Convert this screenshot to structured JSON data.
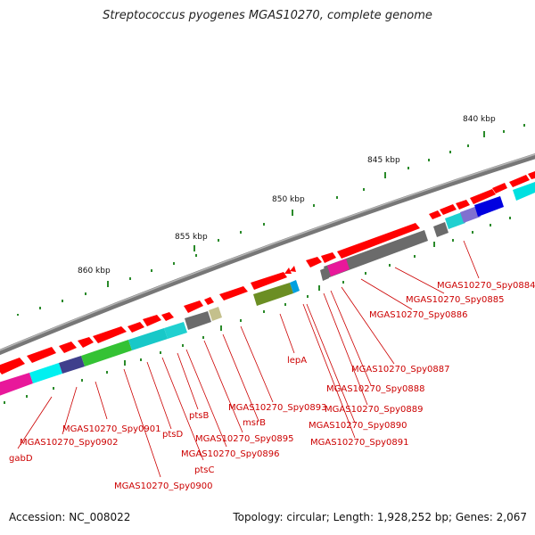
{
  "title": "Streptococcus pyogenes MGAS10270, complete genome",
  "footer": {
    "accession": "Accession: NC_008022",
    "summary": "Topology: circular; Length: 1,928,252 bp; Genes: 2,067"
  },
  "colors": {
    "forward_gene": "#ff0000",
    "reverse_gene": "#6b6b6b",
    "backbone": "#888888",
    "tick": "#2a8a2a",
    "label": "#cc0000"
  },
  "axis": {
    "ticks": [
      {
        "kbp": 860,
        "label": "860 kbp"
      },
      {
        "kbp": 855,
        "label": "855 kbp"
      },
      {
        "kbp": 850,
        "label": "850 kbp"
      },
      {
        "kbp": 845,
        "label": "845 kbp"
      },
      {
        "kbp": 840,
        "label": "840 kbp"
      }
    ]
  },
  "labels": [
    {
      "id": "l-gabD",
      "text": "gabD"
    },
    {
      "id": "l-0902",
      "text": "MGAS10270_Spy0902"
    },
    {
      "id": "l-0901",
      "text": "MGAS10270_Spy0901"
    },
    {
      "id": "l-0900",
      "text": "MGAS10270_Spy0900"
    },
    {
      "id": "l-ptsD",
      "text": "ptsD"
    },
    {
      "id": "l-ptsC",
      "text": "ptsC"
    },
    {
      "id": "l-ptsB",
      "text": "ptsB"
    },
    {
      "id": "l-0896",
      "text": "MGAS10270_Spy0896"
    },
    {
      "id": "l-0895",
      "text": "MGAS10270_Spy0895"
    },
    {
      "id": "l-msrB",
      "text": "msrB"
    },
    {
      "id": "l-0893",
      "text": "MGAS10270_Spy0893"
    },
    {
      "id": "l-lepA",
      "text": "lepA"
    },
    {
      "id": "l-0891",
      "text": "MGAS10270_Spy0891"
    },
    {
      "id": "l-0890",
      "text": "MGAS10270_Spy0890"
    },
    {
      "id": "l-0889",
      "text": "MGAS10270_Spy0889"
    },
    {
      "id": "l-0888",
      "text": "MGAS10270_Spy0888"
    },
    {
      "id": "l-0887",
      "text": "MGAS10270_Spy0887"
    },
    {
      "id": "l-0886",
      "text": "MGAS10270_Spy0886"
    },
    {
      "id": "l-0885",
      "text": "MGAS10270_Spy0885"
    },
    {
      "id": "l-0884",
      "text": "MGAS10270_Spy0884"
    }
  ]
}
